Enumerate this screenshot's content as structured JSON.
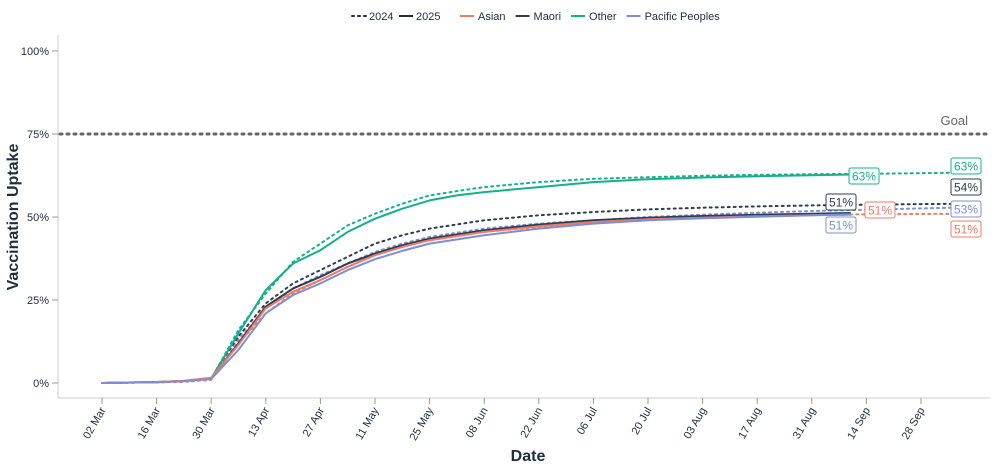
{
  "chart_data": {
    "type": "line",
    "xlabel": "Date",
    "ylabel": "Vaccination Uptake",
    "ylim": [
      0,
      1
    ],
    "xlim": [
      "2025-02-25",
      "2025-10-11"
    ],
    "x_ticks": [
      "2025-03-02",
      "2025-03-16",
      "2025-03-30",
      "2025-04-13",
      "2025-04-27",
      "2025-05-11",
      "2025-05-25",
      "2025-06-08",
      "2025-06-22",
      "2025-07-06",
      "2025-07-20",
      "2025-08-03",
      "2025-08-17",
      "2025-08-31",
      "2025-09-14",
      "2025-09-28"
    ],
    "x_tick_labels": [
      "02 Mar",
      "16 Mar",
      "30 Mar",
      "13 Apr",
      "27 Apr",
      "11 May",
      "25 May",
      "08 Jun",
      "22 Jun",
      "06 Jul",
      "20 Jul",
      "03 Aug",
      "17 Aug",
      "31 Aug",
      "14 Sep",
      "28 Sep"
    ],
    "y_ticks": [
      0,
      0.25,
      0.5,
      0.75,
      1
    ],
    "y_tick_labels": [
      "0%",
      "25%",
      "50%",
      "75%",
      "100%"
    ],
    "goal": {
      "value": 0.75,
      "label": "Goal",
      "color": "#666666"
    },
    "legend": {
      "position": "top-center",
      "years": [
        {
          "label": "2024",
          "style": "dotted"
        },
        {
          "label": "2025",
          "style": "solid"
        }
      ],
      "groups": [
        {
          "label": "Asian",
          "color": "#f07a63"
        },
        {
          "label": "Maori",
          "color": "#2c3e50"
        },
        {
          "label": "Other",
          "color": "#14b08c"
        },
        {
          "label": "Pacific Peoples",
          "color": "#7e8ed6"
        }
      ]
    },
    "series": [
      {
        "name": "Other",
        "year": "2024",
        "color": "#14b08c",
        "style": "dotted",
        "x": [
          "2025-03-02",
          "2025-03-16",
          "2025-03-23",
          "2025-03-30",
          "2025-04-06",
          "2025-04-13",
          "2025-04-20",
          "2025-04-27",
          "2025-05-04",
          "2025-05-11",
          "2025-05-18",
          "2025-05-25",
          "2025-06-01",
          "2025-06-08",
          "2025-06-22",
          "2025-07-06",
          "2025-07-20",
          "2025-08-03",
          "2025-08-17",
          "2025-08-31",
          "2025-09-14",
          "2025-09-28",
          "2025-10-10"
        ],
        "y": [
          0,
          0.002,
          0.005,
          0.012,
          0.16,
          0.27,
          0.365,
          0.42,
          0.475,
          0.51,
          0.54,
          0.565,
          0.578,
          0.59,
          0.605,
          0.615,
          0.62,
          0.624,
          0.627,
          0.629,
          0.63,
          0.632,
          0.634
        ],
        "end_label": "63%"
      },
      {
        "name": "Maori",
        "year": "2024",
        "color": "#2c3e50",
        "style": "dotted",
        "x": [
          "2025-03-02",
          "2025-03-16",
          "2025-03-23",
          "2025-03-30",
          "2025-04-06",
          "2025-04-13",
          "2025-04-20",
          "2025-04-27",
          "2025-05-04",
          "2025-05-11",
          "2025-05-18",
          "2025-05-25",
          "2025-06-08",
          "2025-06-22",
          "2025-07-06",
          "2025-07-20",
          "2025-08-03",
          "2025-08-17",
          "2025-08-31",
          "2025-09-14",
          "2025-09-28",
          "2025-10-10"
        ],
        "y": [
          0,
          0.002,
          0.004,
          0.01,
          0.14,
          0.24,
          0.3,
          0.34,
          0.38,
          0.42,
          0.445,
          0.465,
          0.49,
          0.505,
          0.515,
          0.523,
          0.528,
          0.532,
          0.535,
          0.537,
          0.539,
          0.54
        ],
        "end_label": "54%"
      },
      {
        "name": "Pacific Peoples",
        "year": "2024",
        "color": "#7e8ed6",
        "style": "dotted",
        "x": [
          "2025-03-02",
          "2025-03-16",
          "2025-03-23",
          "2025-03-30",
          "2025-04-06",
          "2025-04-13",
          "2025-04-20",
          "2025-04-27",
          "2025-05-04",
          "2025-05-11",
          "2025-05-18",
          "2025-05-25",
          "2025-06-08",
          "2025-06-22",
          "2025-07-06",
          "2025-07-20",
          "2025-08-03",
          "2025-08-17",
          "2025-08-31",
          "2025-09-14",
          "2025-09-28",
          "2025-10-10"
        ],
        "y": [
          0,
          0.002,
          0.004,
          0.01,
          0.13,
          0.225,
          0.285,
          0.325,
          0.36,
          0.395,
          0.42,
          0.44,
          0.465,
          0.48,
          0.49,
          0.5,
          0.507,
          0.513,
          0.518,
          0.522,
          0.526,
          0.529
        ],
        "end_label": "53%"
      },
      {
        "name": "Asian",
        "year": "2024",
        "color": "#f07a63",
        "style": "dotted",
        "x": [
          "2025-03-02",
          "2025-03-16",
          "2025-03-23",
          "2025-03-30",
          "2025-04-06",
          "2025-04-13",
          "2025-04-20",
          "2025-04-27",
          "2025-05-04",
          "2025-05-11",
          "2025-05-18",
          "2025-05-25",
          "2025-06-08",
          "2025-06-22",
          "2025-07-06",
          "2025-07-20",
          "2025-08-03",
          "2025-08-17",
          "2025-08-31",
          "2025-09-14",
          "2025-09-28",
          "2025-10-10"
        ],
        "y": [
          0,
          0.002,
          0.004,
          0.01,
          0.12,
          0.21,
          0.27,
          0.31,
          0.35,
          0.385,
          0.41,
          0.43,
          0.455,
          0.47,
          0.482,
          0.492,
          0.498,
          0.503,
          0.506,
          0.508,
          0.509,
          0.51
        ],
        "end_label": "51%"
      },
      {
        "name": "Other",
        "year": "2025",
        "color": "#14b08c",
        "style": "solid",
        "x": [
          "2025-03-02",
          "2025-03-16",
          "2025-03-23",
          "2025-03-30",
          "2025-04-06",
          "2025-04-13",
          "2025-04-20",
          "2025-04-27",
          "2025-05-04",
          "2025-05-11",
          "2025-05-18",
          "2025-05-25",
          "2025-06-01",
          "2025-06-08",
          "2025-06-22",
          "2025-07-06",
          "2025-07-20",
          "2025-08-03",
          "2025-08-17",
          "2025-08-31",
          "2025-09-10"
        ],
        "y": [
          0,
          0.002,
          0.006,
          0.014,
          0.15,
          0.28,
          0.36,
          0.4,
          0.455,
          0.495,
          0.525,
          0.55,
          0.565,
          0.575,
          0.59,
          0.605,
          0.614,
          0.619,
          0.623,
          0.626,
          0.628
        ],
        "end_label": "63%"
      },
      {
        "name": "Maori",
        "year": "2025",
        "color": "#2c3e50",
        "style": "solid",
        "x": [
          "2025-03-02",
          "2025-03-16",
          "2025-03-23",
          "2025-03-30",
          "2025-04-06",
          "2025-04-13",
          "2025-04-20",
          "2025-04-27",
          "2025-05-04",
          "2025-05-11",
          "2025-05-18",
          "2025-05-25",
          "2025-06-08",
          "2025-06-22",
          "2025-07-06",
          "2025-07-20",
          "2025-08-03",
          "2025-08-17",
          "2025-08-31",
          "2025-09-10"
        ],
        "y": [
          0,
          0.003,
          0.006,
          0.014,
          0.12,
          0.23,
          0.285,
          0.32,
          0.36,
          0.39,
          0.415,
          0.435,
          0.46,
          0.477,
          0.49,
          0.498,
          0.503,
          0.507,
          0.51,
          0.512
        ],
        "end_label": "51%"
      },
      {
        "name": "Asian",
        "year": "2025",
        "color": "#f07a63",
        "style": "solid",
        "x": [
          "2025-03-02",
          "2025-03-16",
          "2025-03-23",
          "2025-03-30",
          "2025-04-06",
          "2025-04-13",
          "2025-04-20",
          "2025-04-27",
          "2025-05-04",
          "2025-05-11",
          "2025-05-18",
          "2025-05-25",
          "2025-06-08",
          "2025-06-22",
          "2025-07-06",
          "2025-07-20",
          "2025-08-03",
          "2025-08-17",
          "2025-08-31",
          "2025-09-10"
        ],
        "y": [
          0,
          0.003,
          0.007,
          0.016,
          0.115,
          0.225,
          0.275,
          0.31,
          0.35,
          0.385,
          0.41,
          0.43,
          0.455,
          0.472,
          0.485,
          0.493,
          0.498,
          0.502,
          0.505,
          0.507
        ],
        "end_label": "51%"
      },
      {
        "name": "Pacific Peoples",
        "year": "2025",
        "color": "#7e8ed6",
        "style": "solid",
        "x": [
          "2025-03-02",
          "2025-03-16",
          "2025-03-23",
          "2025-03-30",
          "2025-04-06",
          "2025-04-13",
          "2025-04-20",
          "2025-04-27",
          "2025-05-04",
          "2025-05-11",
          "2025-05-18",
          "2025-05-25",
          "2025-06-08",
          "2025-06-22",
          "2025-07-06",
          "2025-07-20",
          "2025-08-03",
          "2025-08-17",
          "2025-08-31",
          "2025-09-10"
        ],
        "y": [
          0,
          0.002,
          0.005,
          0.012,
          0.1,
          0.21,
          0.265,
          0.3,
          0.34,
          0.373,
          0.398,
          0.42,
          0.445,
          0.465,
          0.48,
          0.49,
          0.496,
          0.501,
          0.505,
          0.508
        ],
        "end_label": "51%"
      }
    ]
  }
}
